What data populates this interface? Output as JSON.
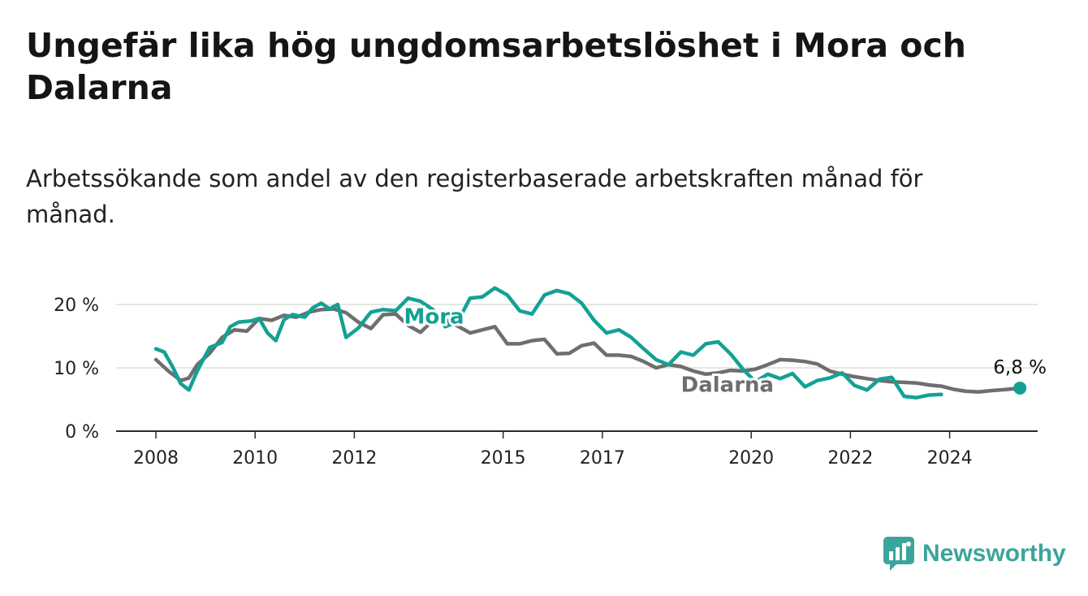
{
  "header": {
    "title": "Ungefär lika hög ungdomsarbetslöshet i Mora och Dalarna",
    "subtitle": "Arbetssökande som andel av den registerbaserade arbetskraften månad för månad."
  },
  "brand": {
    "name": "Newsworthy",
    "color": "#3aa59b"
  },
  "chart_data": {
    "type": "line",
    "title": "Ungefär lika hög ungdomsarbetslöshet i Mora och Dalarna",
    "subtitle": "Arbetssökande som andel av den registerbaserade arbetskraften månad för månad.",
    "xlabel": "",
    "ylabel": "",
    "xlim": [
      "2008-01",
      "2025-10"
    ],
    "ylim": [
      0,
      20
    ],
    "grid": true,
    "legend": "inline labels",
    "x_ticks": [
      {
        "date": "2008-01",
        "label": "2008"
      },
      {
        "date": "2010-01",
        "label": "2010"
      },
      {
        "date": "2012-01",
        "label": "2012"
      },
      {
        "date": "2015-01",
        "label": "2015"
      },
      {
        "date": "2017-01",
        "label": "2017"
      },
      {
        "date": "2020-01",
        "label": "2020"
      },
      {
        "date": "2022-01",
        "label": "2022"
      },
      {
        "date": "2024-01",
        "label": "2024"
      }
    ],
    "y_ticks": [
      {
        "value": 0,
        "label": "0 %"
      },
      {
        "value": 10,
        "label": "10 %"
      },
      {
        "value": 20,
        "label": "20 %"
      }
    ],
    "series": [
      {
        "name": "Dalarna",
        "color": "#6e6e6e",
        "points": [
          [
            "2008-01",
            11.3
          ],
          [
            "2008-04",
            9.5
          ],
          [
            "2008-07",
            8.0
          ],
          [
            "2008-09",
            8.4
          ],
          [
            "2008-11",
            10.5
          ],
          [
            "2009-02",
            12.3
          ],
          [
            "2009-05",
            14.8
          ],
          [
            "2009-08",
            16.0
          ],
          [
            "2009-11",
            15.8
          ],
          [
            "2010-02",
            17.8
          ],
          [
            "2010-05",
            17.5
          ],
          [
            "2010-08",
            18.3
          ],
          [
            "2010-11",
            18.0
          ],
          [
            "2011-02",
            18.8
          ],
          [
            "2011-05",
            19.2
          ],
          [
            "2011-08",
            19.3
          ],
          [
            "2011-11",
            18.7
          ],
          [
            "2012-02",
            17.2
          ],
          [
            "2012-05",
            16.2
          ],
          [
            "2012-08",
            18.4
          ],
          [
            "2012-11",
            18.5
          ],
          [
            "2013-02",
            16.7
          ],
          [
            "2013-05",
            15.6
          ],
          [
            "2013-08",
            17.5
          ],
          [
            "2013-11",
            17.6
          ],
          [
            "2014-02",
            16.6
          ],
          [
            "2014-05",
            15.5
          ],
          [
            "2014-08",
            16.0
          ],
          [
            "2014-11",
            16.5
          ],
          [
            "2015-02",
            13.8
          ],
          [
            "2015-05",
            13.8
          ],
          [
            "2015-08",
            14.3
          ],
          [
            "2015-11",
            14.5
          ],
          [
            "2016-02",
            12.2
          ],
          [
            "2016-05",
            12.3
          ],
          [
            "2016-08",
            13.5
          ],
          [
            "2016-11",
            13.9
          ],
          [
            "2017-02",
            12.0
          ],
          [
            "2017-05",
            12.0
          ],
          [
            "2017-08",
            11.8
          ],
          [
            "2017-11",
            11.0
          ],
          [
            "2018-02",
            10.0
          ],
          [
            "2018-05",
            10.5
          ],
          [
            "2018-08",
            10.2
          ],
          [
            "2018-11",
            9.5
          ],
          [
            "2019-02",
            9.0
          ],
          [
            "2019-05",
            9.2
          ],
          [
            "2019-08",
            9.6
          ],
          [
            "2019-11",
            9.5
          ],
          [
            "2020-02",
            9.8
          ],
          [
            "2020-05",
            10.5
          ],
          [
            "2020-08",
            11.3
          ],
          [
            "2020-11",
            11.2
          ],
          [
            "2021-02",
            11.0
          ],
          [
            "2021-05",
            10.6
          ],
          [
            "2021-08",
            9.5
          ],
          [
            "2021-11",
            9.0
          ],
          [
            "2022-02",
            8.6
          ],
          [
            "2022-05",
            8.3
          ],
          [
            "2022-08",
            8.0
          ],
          [
            "2022-11",
            7.8
          ],
          [
            "2023-02",
            7.7
          ],
          [
            "2023-05",
            7.6
          ],
          [
            "2023-08",
            7.3
          ],
          [
            "2023-11",
            7.1
          ],
          [
            "2024-02",
            6.6
          ],
          [
            "2024-05",
            6.3
          ],
          [
            "2024-08",
            6.2
          ],
          [
            "2024-11",
            6.4
          ],
          [
            "2025-03",
            6.6
          ],
          [
            "2025-06",
            6.8
          ]
        ]
      },
      {
        "name": "Mora",
        "color": "#13a195",
        "points": [
          [
            "2008-01",
            13.0
          ],
          [
            "2008-03",
            12.5
          ],
          [
            "2008-05",
            10.2
          ],
          [
            "2008-07",
            7.5
          ],
          [
            "2008-09",
            6.5
          ],
          [
            "2008-11",
            9.5
          ],
          [
            "2009-02",
            13.2
          ],
          [
            "2009-05",
            14.0
          ],
          [
            "2009-07",
            16.5
          ],
          [
            "2009-09",
            17.2
          ],
          [
            "2009-12",
            17.4
          ],
          [
            "2010-02",
            17.8
          ],
          [
            "2010-04",
            15.5
          ],
          [
            "2010-06",
            14.3
          ],
          [
            "2010-08",
            17.6
          ],
          [
            "2010-10",
            18.4
          ],
          [
            "2011-01",
            18.0
          ],
          [
            "2011-03",
            19.5
          ],
          [
            "2011-05",
            20.2
          ],
          [
            "2011-07",
            19.3
          ],
          [
            "2011-09",
            20.0
          ],
          [
            "2011-11",
            14.8
          ],
          [
            "2012-02",
            16.3
          ],
          [
            "2012-05",
            18.8
          ],
          [
            "2012-08",
            19.2
          ],
          [
            "2012-11",
            19.0
          ],
          [
            "2013-02",
            21.0
          ],
          [
            "2013-05",
            20.5
          ],
          [
            "2013-08",
            19.2
          ],
          [
            "2013-11",
            16.5
          ],
          [
            "2014-02",
            17.3
          ],
          [
            "2014-05",
            21.0
          ],
          [
            "2014-08",
            21.2
          ],
          [
            "2014-11",
            22.6
          ],
          [
            "2015-02",
            21.5
          ],
          [
            "2015-05",
            19.0
          ],
          [
            "2015-08",
            18.5
          ],
          [
            "2015-11",
            21.5
          ],
          [
            "2016-02",
            22.2
          ],
          [
            "2016-05",
            21.7
          ],
          [
            "2016-08",
            20.2
          ],
          [
            "2016-11",
            17.5
          ],
          [
            "2017-02",
            15.5
          ],
          [
            "2017-05",
            16.0
          ],
          [
            "2017-08",
            14.8
          ],
          [
            "2017-11",
            13.0
          ],
          [
            "2018-02",
            11.3
          ],
          [
            "2018-05",
            10.5
          ],
          [
            "2018-08",
            12.5
          ],
          [
            "2018-11",
            12.0
          ],
          [
            "2019-02",
            13.8
          ],
          [
            "2019-05",
            14.1
          ],
          [
            "2019-08",
            12.2
          ],
          [
            "2019-11",
            9.8
          ],
          [
            "2020-02",
            7.8
          ],
          [
            "2020-05",
            9.0
          ],
          [
            "2020-08",
            8.3
          ],
          [
            "2020-11",
            9.1
          ],
          [
            "2021-02",
            7.0
          ],
          [
            "2021-05",
            8.0
          ],
          [
            "2021-08",
            8.4
          ],
          [
            "2021-11",
            9.2
          ],
          [
            "2022-02",
            7.2
          ],
          [
            "2022-05",
            6.5
          ],
          [
            "2022-08",
            8.2
          ],
          [
            "2022-11",
            8.5
          ],
          [
            "2023-02",
            5.5
          ],
          [
            "2023-05",
            5.3
          ],
          [
            "2023-08",
            5.7
          ],
          [
            "2023-11",
            5.8
          ]
        ]
      }
    ],
    "annotations": [
      {
        "series": "Mora",
        "text": "Mora"
      },
      {
        "series": "Dalarna",
        "text": "Dalarna"
      },
      {
        "series": "endpoint",
        "text": "6,8 %",
        "value": 6.8,
        "date": "2025-06"
      }
    ]
  }
}
